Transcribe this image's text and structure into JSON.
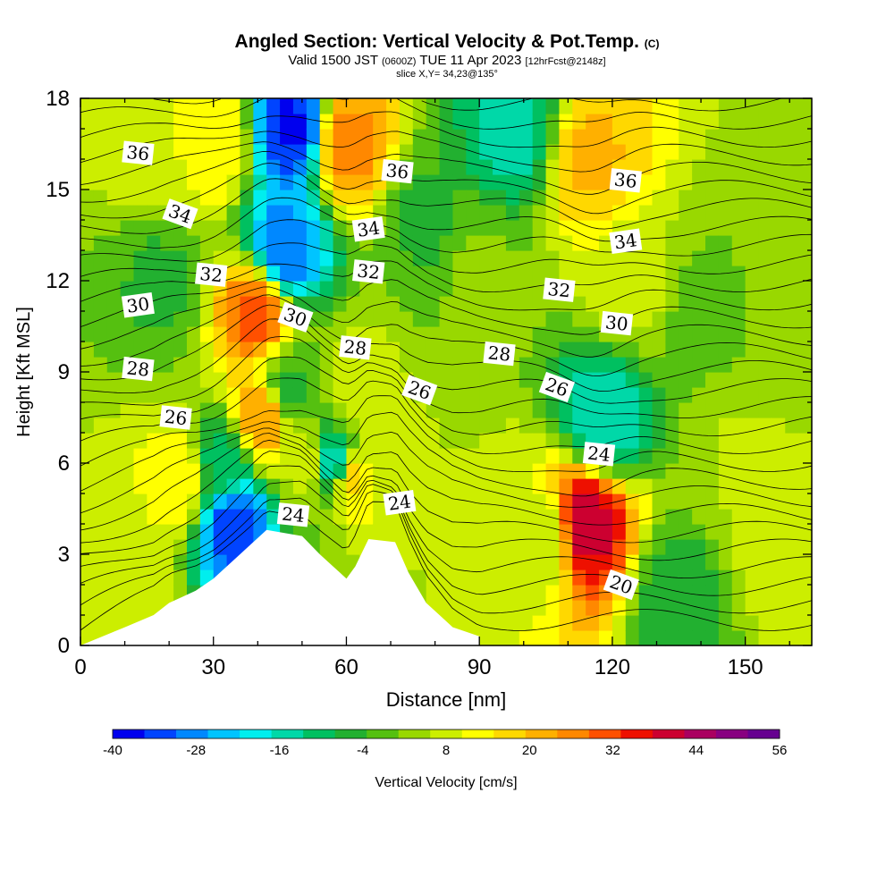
{
  "titles": {
    "main": "Angled Section: Vertical Velocity & Pot.Temp.",
    "main_units": "(C)",
    "valid_prefix": "Valid 1500 JST",
    "valid_utc": "(0600Z)",
    "valid_date": "TUE 11 Apr 2023",
    "forecast": "[12hrFcst@2148z]",
    "slice": "slice X,Y= 34,23@135°"
  },
  "chart_data": {
    "type": "heatmap",
    "title": "Angled Section: Vertical Velocity & Pot.Temp.",
    "xlabel": "Distance [nm]",
    "ylabel": "Height [Kft MSL]",
    "xlim": [
      0,
      165
    ],
    "ylim": [
      0,
      18
    ],
    "xticks": [
      "0",
      "30",
      "60",
      "90",
      "120",
      "150"
    ],
    "yticks": [
      "0",
      "3",
      "6",
      "9",
      "12",
      "15",
      "18"
    ],
    "colorbar": {
      "label": "Vertical Velocity [cm/s]",
      "range": [
        -40,
        56
      ],
      "tick_labels": [
        "-40",
        "-28",
        "-16",
        "-4",
        "8",
        "20",
        "32",
        "44",
        "56"
      ],
      "colors": [
        "#0000ee",
        "#0044ff",
        "#0088ff",
        "#00c4ff",
        "#00eeee",
        "#00d8a8",
        "#00c060",
        "#22b030",
        "#55c010",
        "#99d800",
        "#ccee00",
        "#ffff00",
        "#ffd800",
        "#ffb000",
        "#ff8800",
        "#ff5000",
        "#ee1000",
        "#cc0030",
        "#aa0060",
        "#880080",
        "#660090"
      ]
    },
    "vertical_velocity_features": [
      {
        "x": 2,
        "y": 3.5,
        "value": 6
      },
      {
        "x": 12,
        "y": 1.5,
        "value": 10
      },
      {
        "x": 15,
        "y": 16.5,
        "value": 8
      },
      {
        "x": 18,
        "y": 12,
        "value": -4
      },
      {
        "x": 22,
        "y": 5.5,
        "value": 14
      },
      {
        "x": 30,
        "y": 16.5,
        "value": 14
      },
      {
        "x": 32,
        "y": 6,
        "value": -10
      },
      {
        "x": 35,
        "y": 4,
        "value": -34
      },
      {
        "x": 40,
        "y": 11,
        "value": 30
      },
      {
        "x": 41,
        "y": 7.5,
        "value": 24
      },
      {
        "x": 46,
        "y": 13,
        "value": -30
      },
      {
        "x": 48,
        "y": 17,
        "value": -36
      },
      {
        "x": 47,
        "y": 8.5,
        "value": -4
      },
      {
        "x": 52,
        "y": 6,
        "value": 8
      },
      {
        "x": 57,
        "y": 6,
        "value": -18
      },
      {
        "x": 60,
        "y": 16.5,
        "value": 26
      },
      {
        "x": 61,
        "y": 5.5,
        "value": 16
      },
      {
        "x": 62,
        "y": 8.5,
        "value": 8
      },
      {
        "x": 72,
        "y": 6,
        "value": 6
      },
      {
        "x": 78,
        "y": 14,
        "value": -4
      },
      {
        "x": 90,
        "y": 12,
        "value": 2
      },
      {
        "x": 98,
        "y": 17,
        "value": -14
      },
      {
        "x": 104,
        "y": 3.5,
        "value": 6
      },
      {
        "x": 114,
        "y": 4,
        "value": 40
      },
      {
        "x": 115,
        "y": 16,
        "value": 20
      },
      {
        "x": 118,
        "y": 7.5,
        "value": -16
      },
      {
        "x": 124,
        "y": 12,
        "value": 8
      },
      {
        "x": 135,
        "y": 1.5,
        "value": -6
      },
      {
        "x": 140,
        "y": 11,
        "value": 0
      },
      {
        "x": 150,
        "y": 6,
        "value": 6
      },
      {
        "x": 158,
        "y": 3,
        "value": 8
      },
      {
        "x": 160,
        "y": 12,
        "value": 2
      }
    ],
    "contour_labels": [
      {
        "text": "36",
        "x": 13,
        "y": 16.2
      },
      {
        "text": "34",
        "x": 22.5,
        "y": 14.2
      },
      {
        "text": "32",
        "x": 29.5,
        "y": 12.2
      },
      {
        "text": "30",
        "x": 13,
        "y": 11.2
      },
      {
        "text": "28",
        "x": 13,
        "y": 9.1
      },
      {
        "text": "26",
        "x": 21.5,
        "y": 7.5
      },
      {
        "text": "30",
        "x": 48.5,
        "y": 10.8
      },
      {
        "text": "36",
        "x": 71.5,
        "y": 15.6
      },
      {
        "text": "34",
        "x": 65,
        "y": 13.7
      },
      {
        "text": "32",
        "x": 65,
        "y": 12.3
      },
      {
        "text": "28",
        "x": 62,
        "y": 9.8
      },
      {
        "text": "26",
        "x": 76.5,
        "y": 8.4
      },
      {
        "text": "24",
        "x": 48,
        "y": 4.3
      },
      {
        "text": "24",
        "x": 72,
        "y": 4.7
      },
      {
        "text": "28",
        "x": 94.5,
        "y": 9.6
      },
      {
        "text": "32",
        "x": 108,
        "y": 11.7
      },
      {
        "text": "26",
        "x": 107.5,
        "y": 8.5
      },
      {
        "text": "36",
        "x": 123,
        "y": 15.3
      },
      {
        "text": "34",
        "x": 123,
        "y": 13.3
      },
      {
        "text": "30",
        "x": 121,
        "y": 10.6
      },
      {
        "text": "24",
        "x": 117,
        "y": 6.3
      },
      {
        "text": "20",
        "x": 122,
        "y": 2.0
      }
    ],
    "terrain": [
      {
        "x": 0,
        "y": 0
      },
      {
        "x": 10,
        "y": 0.6
      },
      {
        "x": 16.5,
        "y": 1.0
      },
      {
        "x": 20,
        "y": 1.4
      },
      {
        "x": 23,
        "y": 1.6
      },
      {
        "x": 26,
        "y": 1.8
      },
      {
        "x": 30,
        "y": 2.2
      },
      {
        "x": 33,
        "y": 2.6
      },
      {
        "x": 36,
        "y": 3.0
      },
      {
        "x": 39,
        "y": 3.4
      },
      {
        "x": 42,
        "y": 3.8
      },
      {
        "x": 50,
        "y": 3.6
      },
      {
        "x": 54,
        "y": 3.0
      },
      {
        "x": 57,
        "y": 2.6
      },
      {
        "x": 60,
        "y": 2.2
      },
      {
        "x": 62,
        "y": 2.6
      },
      {
        "x": 65,
        "y": 3.5
      },
      {
        "x": 71,
        "y": 3.4
      },
      {
        "x": 74,
        "y": 2.4
      },
      {
        "x": 76,
        "y": 1.9
      },
      {
        "x": 78,
        "y": 1.4
      },
      {
        "x": 81,
        "y": 1.0
      },
      {
        "x": 84,
        "y": 0.6
      },
      {
        "x": 90,
        "y": 0.3
      }
    ]
  }
}
